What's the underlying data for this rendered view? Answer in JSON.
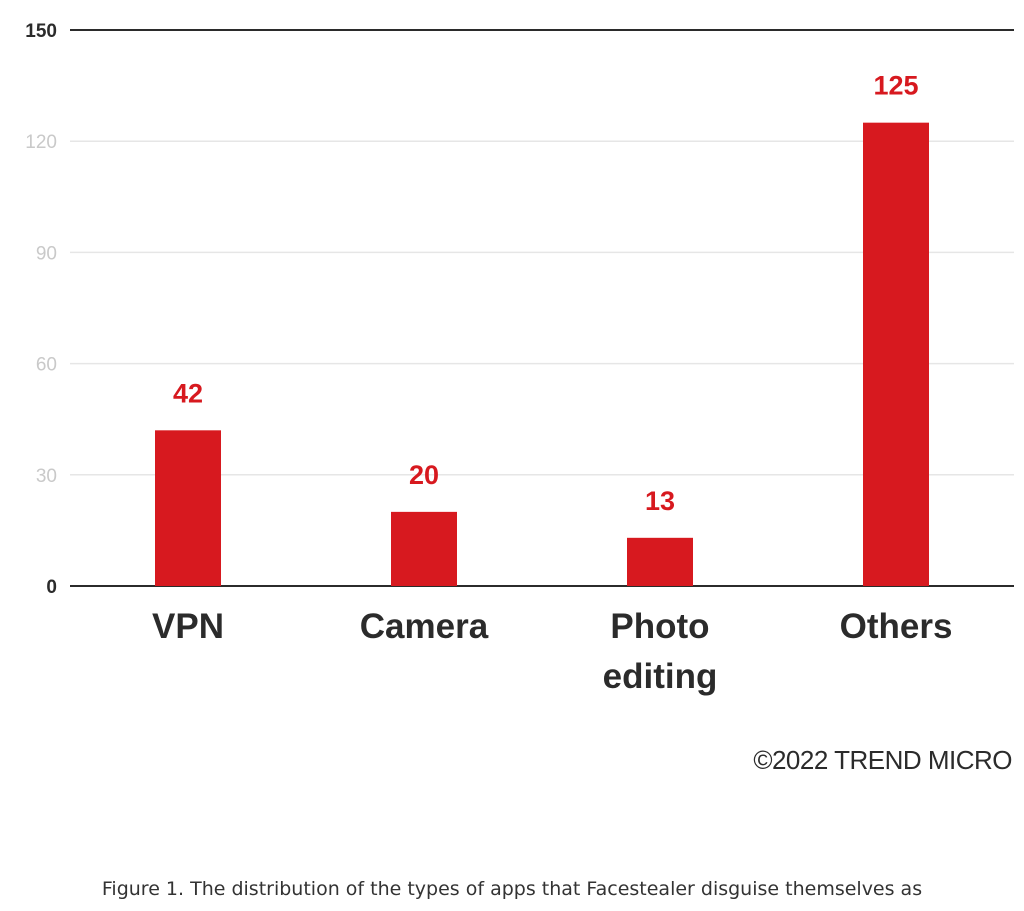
{
  "chart_data": {
    "type": "bar",
    "categories": [
      [
        "VPN"
      ],
      [
        "Camera"
      ],
      [
        "Photo",
        "editing"
      ],
      [
        "Others"
      ]
    ],
    "values": [
      42,
      20,
      13,
      125
    ],
    "data_labels": [
      "42",
      "20",
      "13",
      "125"
    ],
    "ylim": [
      0,
      150
    ],
    "yticks": [
      0,
      30,
      60,
      90,
      120,
      150
    ],
    "ytick_labels": [
      "0",
      "30",
      "60",
      "90",
      "120",
      "150"
    ],
    "grid": true,
    "title": "",
    "xlabel": "",
    "ylabel": "",
    "colors": {
      "bar": "#d7191f",
      "value_label": "#d7191f",
      "axis_line": "#2b2b2b",
      "grid": "#e6e6e6",
      "faint_tick": "#c9c9c9",
      "dark_tick": "#2b2b2b"
    }
  },
  "copyright": "©2022 TREND MICRO",
  "caption": "Figure 1. The distribution of the types of apps that Facestealer disguise themselves as"
}
